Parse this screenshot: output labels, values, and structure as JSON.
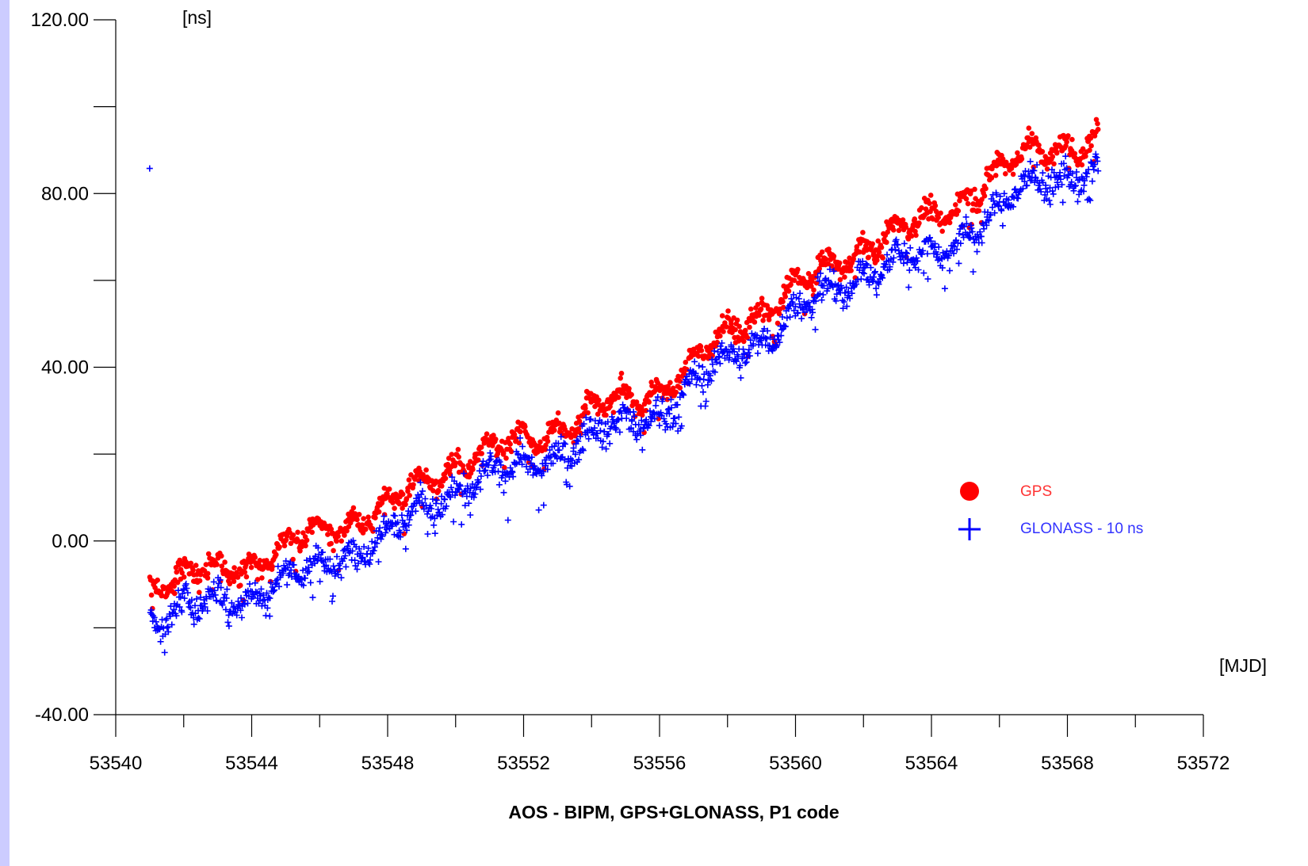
{
  "chart_data": {
    "type": "scatter",
    "title": "AOS - BIPM, GPS+GLONASS, P1 code",
    "xlabel": "[MJD]",
    "ylabel": "[ns]",
    "xlim": [
      53540,
      53572
    ],
    "ylim": [
      -40,
      120
    ],
    "x_ticks": [
      "53540",
      "53544",
      "53548",
      "53552",
      "53556",
      "53560",
      "53564",
      "53568",
      "53572"
    ],
    "y_ticks": [
      "-40.00",
      "0.00",
      "40.00",
      "80.00",
      "120.00"
    ],
    "grid": false,
    "legend_position": "right",
    "series": [
      {
        "name": "GPS",
        "marker": "circle",
        "color": "#ff0000",
        "x_range": [
          53541.0,
          53568.9
        ],
        "trend": [
          [
            53541.0,
            -10
          ],
          [
            53544,
            -5
          ],
          [
            53546,
            2
          ],
          [
            53548,
            8
          ],
          [
            53550,
            18
          ],
          [
            53552,
            23
          ],
          [
            53554,
            30
          ],
          [
            53556,
            35
          ],
          [
            53556.9,
            40
          ],
          [
            53558,
            48
          ],
          [
            53560,
            58
          ],
          [
            53562,
            68
          ],
          [
            53564,
            74
          ],
          [
            53566,
            85
          ],
          [
            53567,
            90
          ],
          [
            53568.9,
            92
          ]
        ]
      },
      {
        "name": "GLONASS - 10 ns",
        "marker": "plus",
        "color": "#0000ff",
        "x_range": [
          53541.0,
          53568.9
        ],
        "trend": [
          [
            53541.0,
            -18
          ],
          [
            53544,
            -12
          ],
          [
            53546,
            -6
          ],
          [
            53548,
            2
          ],
          [
            53550,
            12
          ],
          [
            53552,
            17
          ],
          [
            53554,
            24
          ],
          [
            53556,
            30
          ],
          [
            53556.9,
            35
          ],
          [
            53558,
            42
          ],
          [
            53560,
            52
          ],
          [
            53562,
            62
          ],
          [
            53564,
            66
          ],
          [
            53566,
            76
          ],
          [
            53567,
            83
          ],
          [
            53568.9,
            85
          ]
        ]
      }
    ]
  }
}
